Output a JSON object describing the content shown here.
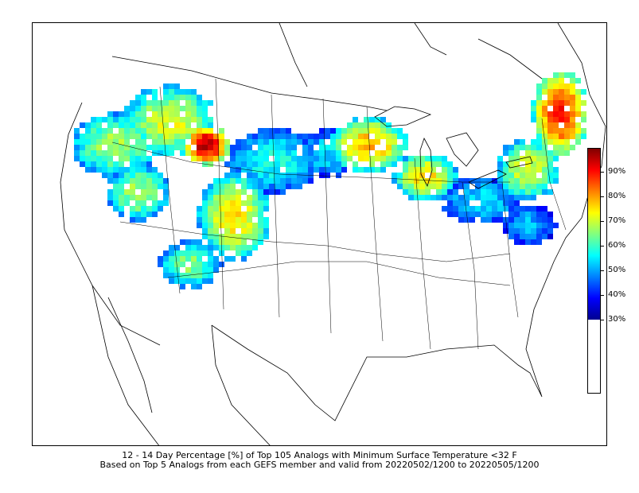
{
  "title_line_1": "12 - 14 Day Percentage [%] of Top 105 Analogs with Minimum Surface Temperature <32 F",
  "title_line_2": "Based on Top 5 Analogs from each GEFS member and valid from 20220502/1200 to 20220505/1200",
  "colorbar": {
    "ticks": [
      "30%",
      "40%",
      "50%",
      "60%",
      "70%",
      "80%",
      "90%"
    ],
    "range": [
      30,
      100
    ],
    "colors": [
      "#00008f",
      "#0000ff",
      "#0080ff",
      "#00ffff",
      "#80ff80",
      "#ffff00",
      "#ff8000",
      "#ff0000",
      "#800000"
    ]
  },
  "map": {
    "region": "Continental United States and southern Canada",
    "field": "percentage"
  }
}
